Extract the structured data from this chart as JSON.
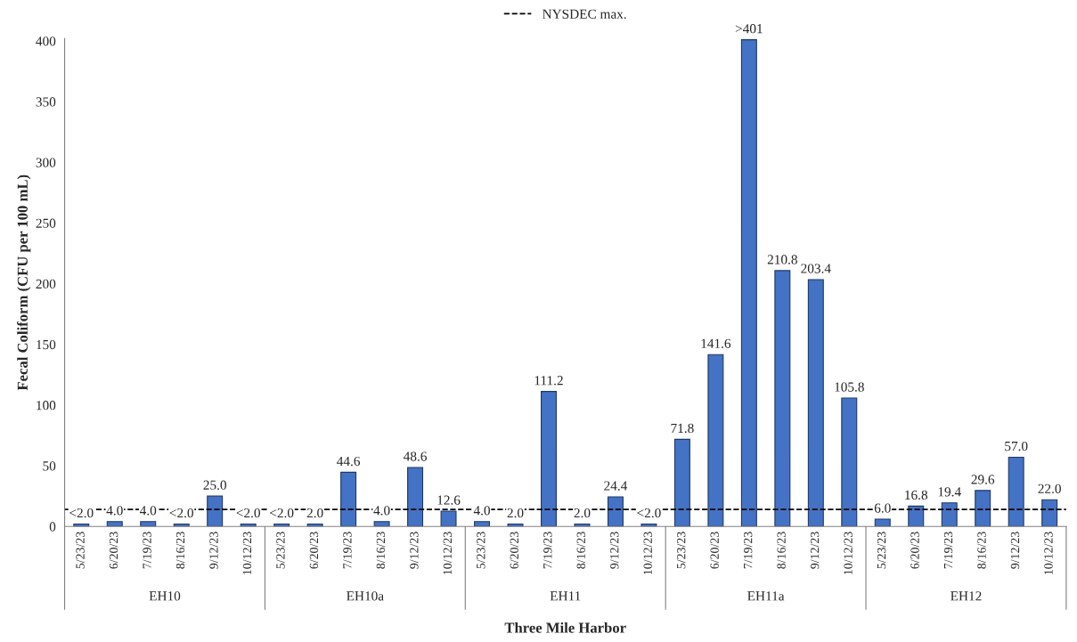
{
  "chart_data": {
    "type": "bar",
    "ylabel": "Fecal Coliform (CFU per 100 mL)",
    "xlabel": "Three Mile Harbor",
    "categories": [
      "5/23/23",
      "6/20/23",
      "7/19/23",
      "8/16/23",
      "9/12/23",
      "10/12/23",
      "5/23/23",
      "6/20/23",
      "7/19/23",
      "8/16/23",
      "9/12/23",
      "10/12/23",
      "5/23/23",
      "6/20/23",
      "7/19/23",
      "8/16/23",
      "9/12/23",
      "10/12/23",
      "5/23/23",
      "6/20/23",
      "7/19/23",
      "8/16/23",
      "9/12/23",
      "10/12/23",
      "5/23/23",
      "6/20/23",
      "7/19/23",
      "8/16/23",
      "9/12/23",
      "10/12/23"
    ],
    "values": [
      2,
      4,
      4,
      2,
      25,
      2,
      2,
      2,
      44.6,
      4,
      48.6,
      12.6,
      4,
      2,
      111.2,
      2,
      24.4,
      2,
      71.8,
      141.6,
      401,
      210.8,
      203.4,
      105.8,
      6,
      16.8,
      19.4,
      29.6,
      57,
      22
    ],
    "value_labels": [
      "<2.0",
      "4.0",
      "4.0",
      "<2.0",
      "25.0",
      "<2.0",
      "<2.0",
      "2.0",
      "44.6",
      "4.0",
      "48.6",
      "12.6",
      "4.0",
      "2.0",
      "111.2",
      "2.0",
      "24.4",
      "<2.0",
      "71.8",
      "141.6",
      ">401",
      "210.8",
      "203.4",
      "105.8",
      "6.0",
      "16.8",
      "19.4",
      "29.6",
      "57.0",
      "22.0"
    ],
    "color": "#4472c4",
    "annotations": [
      "EH10",
      "EH10a",
      "EH11",
      "EH11a",
      "EH12"
    ],
    "ylim": [
      0,
      402
    ],
    "yticks": [
      0,
      50,
      100,
      150,
      200,
      250,
      300,
      350,
      400
    ],
    "ref_lines": [
      {
        "axis": "y",
        "value": 14,
        "label": "NYSDEC max.",
        "color": "#000000",
        "line_style": "dashed"
      }
    ],
    "legend": "top",
    "grid": false
  }
}
